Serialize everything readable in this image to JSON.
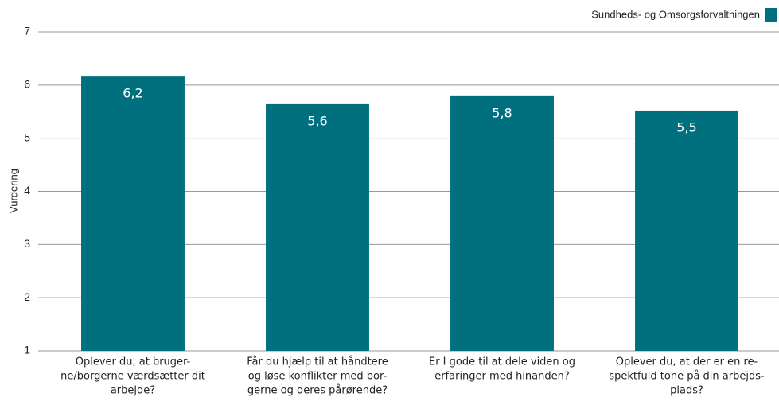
{
  "chart_data": {
    "type": "bar",
    "y_label": "Vurdering",
    "categories": [
      [
        "Oplever du, at bruger-",
        "ne/borgerne værdsætter dit",
        "arbejde?"
      ],
      [
        "Får du hjælp til at håndtere",
        "og løse konflikter med bor-",
        "gerne og deres pårørende?"
      ],
      [
        "Er I gode til at dele viden og",
        "erfaringer med hinanden?"
      ],
      [
        "Oplever du, at der er en re-",
        "spektfuld tone på din arbejds-",
        "plads?"
      ]
    ],
    "series": [
      {
        "name": "Sundheds- og Omsorgsforvaltningen",
        "color": "#00707f",
        "values": [
          6.16,
          5.64,
          5.79,
          5.52
        ],
        "value_labels": [
          "6,2",
          "5,6",
          "5,8",
          "5,5"
        ]
      }
    ],
    "ylim": [
      1,
      7
    ],
    "yticks": [
      1,
      2,
      3,
      4,
      5,
      6,
      7
    ],
    "grid": true,
    "legend": "top-right"
  }
}
